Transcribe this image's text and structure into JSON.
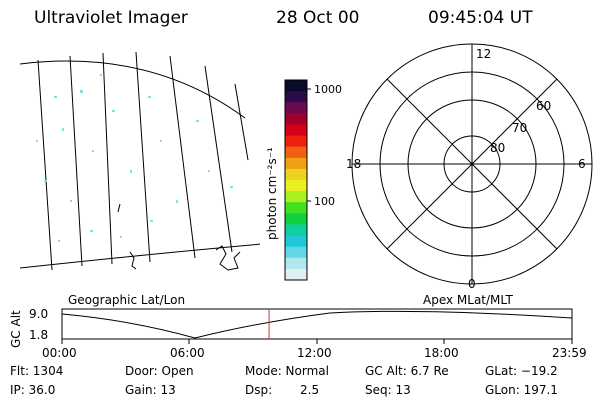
{
  "header": {
    "title": "Ultraviolet Imager",
    "date": "28 Oct 00",
    "time": "09:45:04 UT"
  },
  "colorbar": {
    "label": "photon cm⁻²s⁻¹",
    "ticks": [
      "1000",
      "100"
    ],
    "colors": [
      "#0a0a2a",
      "#2a0a4a",
      "#6a0a4a",
      "#a0002a",
      "#d4001a",
      "#f02010",
      "#f06010",
      "#f0a010",
      "#f0d020",
      "#e8f020",
      "#a8f020",
      "#40e020",
      "#10d040",
      "#10d0a0",
      "#20c8d8",
      "#60d8e8",
      "#b0e8f0",
      "#e0f0f0"
    ]
  },
  "polar": {
    "labels_top": "12",
    "labels_right": "6",
    "labels_bottom": "0",
    "labels_left": "18",
    "lat_labels": [
      "60",
      "70",
      "80"
    ]
  },
  "orbit": {
    "ylabel": "GC Alt",
    "y_ticks": [
      "9.0",
      "1.8"
    ],
    "left_label": "Geographic Lat/Lon",
    "right_label": "Apex MLat/MLT",
    "x_ticks": [
      "00:00",
      "06:00",
      "12:00",
      "18:00",
      "23:59"
    ],
    "current_time_fraction": 0.406
  },
  "status": {
    "flt": "Flt: 1304",
    "ip": "IP: 36.0",
    "door": "Door: Open",
    "gain": "Gain: 13",
    "mode": "Mode: Normal",
    "dsp_label": "Dsp:",
    "dsp_value": "2.5",
    "gc_alt": "GC Alt: 6.7 Re",
    "seq": "Seq: 13",
    "glat": "GLat: −19.2",
    "glon": "GLon: 197.1"
  }
}
